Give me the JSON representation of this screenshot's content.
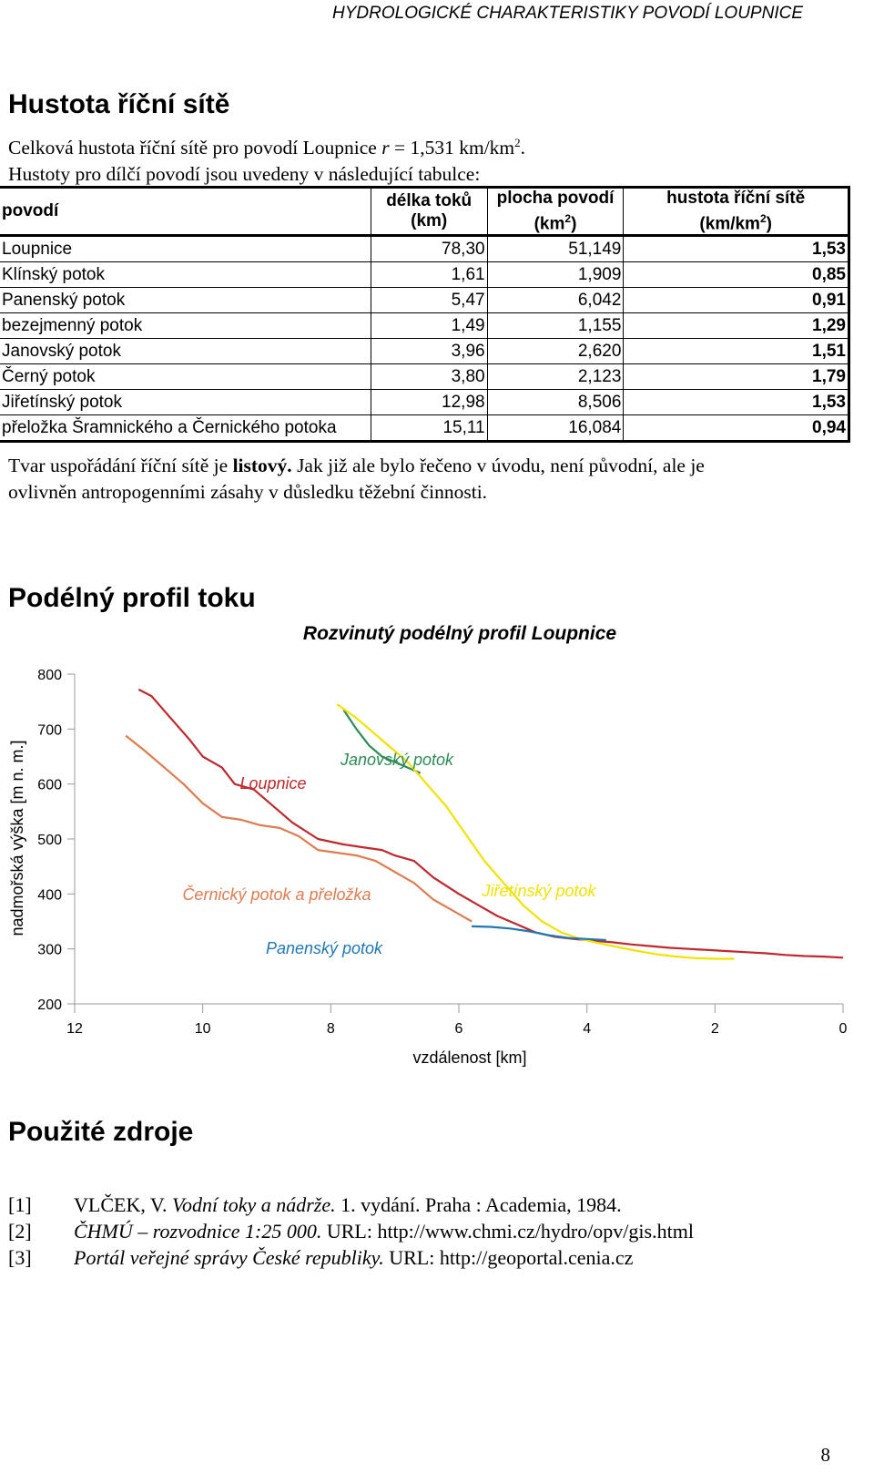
{
  "header": {
    "running_title": "HYDROLOGICKÉ CHARAKTERISTIKY POVODÍ LOUPNICE"
  },
  "section1": {
    "title": "Hustota říční sítě",
    "line1_prefix": "Celková hustota říční sítě pro povodí Loupnice ",
    "line1_var": "r",
    "line1_value": " = 1,531 km/km",
    "line1_sup": "2",
    "line1_end": ".",
    "line2": "Hustoty pro dílčí povodí jsou uvedeny v následující tabulce:"
  },
  "table": {
    "headers": {
      "povodi": "povodí",
      "delka": "délka toků",
      "delka_unit": "(km)",
      "plocha": "plocha povodí",
      "plocha_unit_pre": "(km",
      "plocha_unit_sup": "2",
      "plocha_unit_post": ")",
      "hustota": "hustota říční sítě",
      "hustota_unit_pre": "(km/km",
      "hustota_unit_sup": "2",
      "hustota_unit_post": ")"
    },
    "rows": [
      {
        "name": "Loupnice",
        "length": "78,30",
        "area": "51,149",
        "density": "1,53"
      },
      {
        "name": "Klínský potok",
        "length": "1,61",
        "area": "1,909",
        "density": "0,85"
      },
      {
        "name": "Panenský potok",
        "length": "5,47",
        "area": "6,042",
        "density": "0,91"
      },
      {
        "name": "bezejmenný potok",
        "length": "1,49",
        "area": "1,155",
        "density": "1,29"
      },
      {
        "name": "Janovský potok",
        "length": "3,96",
        "area": "2,620",
        "density": "1,51"
      },
      {
        "name": "Černý potok",
        "length": "3,80",
        "area": "2,123",
        "density": "1,79"
      },
      {
        "name": "Jiřetínský potok",
        "length": "12,98",
        "area": "8,506",
        "density": "1,53"
      },
      {
        "name": "přeložka Šramnického a Černického potoka",
        "length": "15,11",
        "area": "16,084",
        "density": "0,94"
      }
    ]
  },
  "shape_text": {
    "part1": "Tvar uspořádání říční sítě je ",
    "bold": "listový.",
    "part2": " Jak již ale bylo řečeno v úvodu, není původní, ale je",
    "line2": "ovlivněn antropogenními zásahy v důsledku těžební činnosti."
  },
  "section2": {
    "title": "Podélný profil toku"
  },
  "chart_data": {
    "type": "line",
    "title": "Rozvinutý podélný profil Loupnice",
    "xlabel": "vzdálenost [km]",
    "ylabel": "nadmořská výška [m n. m.]",
    "xlim": [
      12,
      0
    ],
    "ylim": [
      200,
      800
    ],
    "xticks": [
      12,
      10,
      8,
      6,
      4,
      2,
      0
    ],
    "yticks": [
      800,
      700,
      600,
      500,
      400,
      300,
      200
    ],
    "series": [
      {
        "name": "Loupnice",
        "color": "#c0282d",
        "x": [
          11.0,
          10.8,
          10.5,
          10.2,
          10.0,
          9.7,
          9.5,
          9.2,
          9.0,
          8.6,
          8.2,
          7.8,
          7.5,
          7.2,
          7.0,
          6.7,
          6.4,
          6.0,
          5.7,
          5.4,
          5.1,
          4.8,
          4.5,
          4.2,
          3.9,
          3.6,
          3.3,
          3.0,
          2.7,
          2.4,
          2.1,
          1.8,
          1.5,
          1.2,
          0.9,
          0.6,
          0.3,
          0.0
        ],
        "y": [
          772,
          760,
          720,
          680,
          650,
          630,
          600,
          590,
          570,
          530,
          500,
          490,
          485,
          480,
          470,
          460,
          430,
          400,
          380,
          360,
          345,
          330,
          322,
          318,
          315,
          312,
          308,
          305,
          302,
          300,
          298,
          296,
          294,
          292,
          289,
          287,
          286,
          284
        ]
      },
      {
        "name": "Černický potok a přeložka",
        "color": "#e07b50",
        "x": [
          11.2,
          10.9,
          10.6,
          10.3,
          10.0,
          9.7,
          9.4,
          9.1,
          8.8,
          8.5,
          8.2,
          7.9,
          7.6,
          7.3,
          7.0,
          6.7,
          6.4,
          6.1,
          5.8
        ],
        "y": [
          688,
          660,
          630,
          600,
          565,
          540,
          535,
          525,
          520,
          505,
          480,
          475,
          470,
          460,
          440,
          420,
          390,
          370,
          350
        ]
      },
      {
        "name": "Janovský potok",
        "color": "#2e8b57",
        "x": [
          7.8,
          7.6,
          7.4,
          7.2,
          7.0,
          6.8,
          6.6
        ],
        "y": [
          735,
          700,
          670,
          650,
          640,
          630,
          620
        ]
      },
      {
        "name": "Jiřetínský potok",
        "color": "#f2e200",
        "x": [
          7.9,
          7.6,
          7.3,
          7.0,
          6.8,
          6.5,
          6.2,
          5.9,
          5.6,
          5.3,
          5.0,
          4.7,
          4.4,
          4.1,
          3.8,
          3.5,
          3.2,
          2.9,
          2.6,
          2.3,
          2.0,
          1.7
        ],
        "y": [
          745,
          720,
          690,
          660,
          640,
          600,
          560,
          510,
          460,
          420,
          380,
          350,
          330,
          318,
          310,
          303,
          296,
          290,
          286,
          283,
          282,
          282
        ]
      },
      {
        "name": "Panenský potok",
        "color": "#1f77b4",
        "x": [
          5.8,
          5.5,
          5.2,
          4.9,
          4.6,
          4.3,
          4.0,
          3.7
        ],
        "y": [
          341,
          340,
          337,
          332,
          325,
          320,
          318,
          316
        ]
      }
    ],
    "labels": [
      {
        "text": "Janovský potok",
        "color": "#2e8b57"
      },
      {
        "text": "Loupnice",
        "color": "#c0282d"
      },
      {
        "text": "Černický potok a přeložka",
        "color": "#e07b50"
      },
      {
        "text": "Jiřetínský potok",
        "color": "#f2e200"
      },
      {
        "text": "Panenský potok",
        "color": "#1f77b4"
      }
    ]
  },
  "section3": {
    "title": "Použité zdroje"
  },
  "references": [
    {
      "idx": "[1]",
      "italic": "VLČEK, V. ",
      "italic2": "Vodní toky a nádrže.",
      "rest": " 1. vydání. Praha : Academia, 1984."
    },
    {
      "idx": "[2]",
      "italic": "",
      "italic2": "ČHMÚ – rozvodnice 1:25 000.",
      "rest": " URL: http://www.chmi.cz/hydro/opv/gis.html"
    },
    {
      "idx": "[3]",
      "italic": "",
      "italic2": "Portál veřejné správy České republiky.",
      "rest": " URL: http://geoportal.cenia.cz"
    }
  ],
  "footer": {
    "page_number": "8"
  }
}
